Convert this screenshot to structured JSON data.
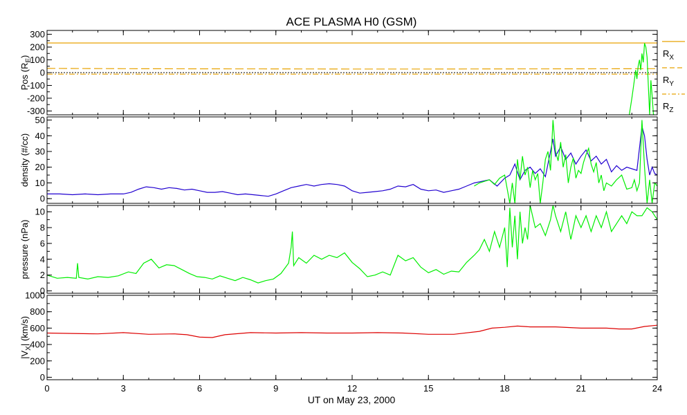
{
  "figure": {
    "title": "ACE PLASMA H0 (GSM)",
    "xlabel": "UT on May 23, 2000",
    "x_ticks": [
      "0",
      "3",
      "6",
      "9",
      "12",
      "15",
      "18",
      "21",
      "24"
    ],
    "xlim": [
      0,
      24
    ]
  },
  "chart_data": [
    {
      "type": "line",
      "ylabel": "Pos (R",
      "ylabel_sub": "E",
      "ylabel_end": ")",
      "ylim": [
        -330,
        330
      ],
      "y_ticks": [
        "300",
        "200",
        "100",
        "0",
        "-100",
        "-200",
        "-300"
      ],
      "y_tick_values": [
        300,
        200,
        100,
        0,
        -100,
        -200,
        -300
      ],
      "legend": [
        {
          "label": "R",
          "sub": "X",
          "style": "solid",
          "color": "#e8a200"
        },
        {
          "label": "R",
          "sub": "Y",
          "style": "dashed",
          "color": "#e8a200"
        },
        {
          "label": "R",
          "sub": "Z",
          "style": "dashdot",
          "color": "#e8a200"
        }
      ],
      "series": [
        {
          "key": "rx",
          "color": "#e8a200",
          "style": "solid",
          "x": [
            0,
            24
          ],
          "values": [
            232,
            232
          ]
        },
        {
          "key": "ry",
          "color": "#e8a200",
          "style": "dashed",
          "x": [
            0,
            3,
            6,
            9,
            12,
            15,
            18,
            21,
            24
          ],
          "values": [
            33,
            31,
            30,
            29,
            28,
            28,
            29,
            30,
            31
          ]
        },
        {
          "key": "rz",
          "color": "#e8a200",
          "style": "dashdot",
          "x": [
            0,
            24
          ],
          "values": [
            -12,
            -12
          ]
        },
        {
          "key": "zero",
          "color": "#000000",
          "style": "dotted",
          "x": [
            0,
            24
          ],
          "values": [
            0,
            0
          ]
        },
        {
          "key": "spike",
          "color": "#00ee00",
          "style": "solid",
          "x": [
            22.9,
            23.0,
            23.1,
            23.15,
            23.2,
            23.25,
            23.3,
            23.35,
            23.4,
            23.45,
            23.5,
            23.55,
            23.6,
            23.65,
            23.7,
            23.75,
            23.8,
            23.85,
            23.9
          ],
          "values": [
            -330,
            -200,
            -60,
            20,
            -50,
            50,
            100,
            20,
            150,
            80,
            230,
            200,
            120,
            -100,
            -330,
            -60,
            -180,
            -330,
            -330
          ]
        }
      ]
    },
    {
      "type": "line",
      "ylabel": "density (#/cc)",
      "ylim": [
        -3,
        52
      ],
      "y_ticks": [
        "50",
        "40",
        "30",
        "20",
        "10",
        "0"
      ],
      "y_tick_values": [
        50,
        40,
        30,
        20,
        10,
        0
      ],
      "series": [
        {
          "key": "density",
          "color": "#2000d0",
          "style": "solid",
          "x": [
            0,
            0.5,
            1,
            1.5,
            2,
            2.5,
            3,
            3.3,
            3.6,
            3.9,
            4.2,
            4.5,
            4.8,
            5.1,
            5.4,
            5.7,
            6,
            6.3,
            6.6,
            6.9,
            7.2,
            7.5,
            7.8,
            8.1,
            8.4,
            8.7,
            9,
            9.3,
            9.6,
            9.9,
            10.2,
            10.5,
            10.8,
            11.1,
            11.4,
            11.7,
            12,
            12.3,
            12.6,
            12.9,
            13.2,
            13.5,
            13.8,
            14.1,
            14.4,
            14.7,
            15,
            15.3,
            15.6,
            15.9,
            16.2,
            16.5,
            16.8,
            17.1,
            17.4,
            17.7,
            18,
            18.2,
            18.4,
            18.6,
            18.8,
            19,
            19.2,
            19.4,
            19.6,
            19.8,
            19.9,
            20,
            20.2,
            20.4,
            20.6,
            20.8,
            21,
            21.2,
            21.4,
            21.6,
            21.8,
            22,
            22.2,
            22.4,
            22.6,
            22.8,
            23,
            23.2,
            23.4,
            23.5,
            23.6,
            23.7,
            23.8,
            23.9,
            24
          ],
          "values": [
            3,
            3,
            2.5,
            3,
            2.5,
            3,
            3,
            4,
            6,
            7.5,
            7,
            6,
            7,
            6.5,
            5.5,
            6,
            5,
            4,
            4,
            4.5,
            3.5,
            2.5,
            3,
            2.5,
            2,
            1.5,
            3,
            5,
            7,
            8,
            9,
            8,
            9,
            9.5,
            9,
            8,
            5,
            3.5,
            4,
            4.5,
            5,
            6,
            8,
            7.5,
            9,
            6,
            5,
            5.5,
            4,
            5,
            6,
            8,
            10,
            11,
            12,
            8,
            13,
            15,
            22,
            12,
            18,
            20,
            16,
            19,
            14,
            30,
            38,
            27,
            33,
            25,
            29,
            22,
            27,
            31,
            24,
            27,
            22,
            25,
            17,
            21,
            18,
            20,
            19,
            18,
            46,
            40,
            25,
            15,
            20,
            16,
            15
          ]
        },
        {
          "key": "density_green",
          "color": "#00ee00",
          "style": "solid",
          "x": [
            16.8,
            17.0,
            17.2,
            17.4,
            17.6,
            17.8,
            18.0,
            18.2,
            18.3,
            18.4,
            18.5,
            18.6,
            18.7,
            18.8,
            18.9,
            19.0,
            19.1,
            19.2,
            19.3,
            19.4,
            19.5,
            19.6,
            19.7,
            19.8,
            19.9,
            20.0,
            20.1,
            20.2,
            20.3,
            20.4,
            20.5,
            20.6,
            20.7,
            20.8,
            20.9,
            21.0,
            21.1,
            21.2,
            21.3,
            21.4,
            21.5,
            21.6,
            21.7,
            21.8,
            21.9,
            22.0,
            22.2,
            22.4,
            22.6,
            22.8,
            23.0,
            23.1,
            23.2,
            23.3,
            23.4,
            23.5,
            23.6,
            23.7,
            23.8,
            23.9,
            24.0
          ],
          "values": [
            8,
            10,
            11,
            12,
            9,
            13,
            15,
            -3,
            10,
            -3,
            25,
            12,
            27,
            15,
            20,
            7,
            18,
            12,
            16,
            -3,
            10,
            25,
            30,
            18,
            50,
            30,
            24,
            36,
            20,
            28,
            10,
            20,
            26,
            13,
            18,
            16,
            23,
            28,
            32,
            22,
            17,
            23,
            10,
            15,
            5,
            10,
            8,
            12,
            15,
            6,
            7,
            12,
            5,
            10,
            50,
            20,
            -3,
            12,
            -3,
            10,
            8
          ]
        }
      ]
    },
    {
      "type": "line",
      "ylabel": "pressure (nPa)",
      "ylim": [
        -0.3,
        10.8
      ],
      "y_ticks": [
        "10",
        "8",
        "6",
        "4",
        "2",
        "0"
      ],
      "y_tick_values": [
        10,
        8,
        6,
        4,
        2,
        0
      ],
      "series": [
        {
          "key": "pressure",
          "color": "#00ee00",
          "style": "solid",
          "x": [
            0,
            0.4,
            0.8,
            1.15,
            1.2,
            1.25,
            1.6,
            2,
            2.4,
            2.8,
            3.2,
            3.5,
            3.8,
            4.1,
            4.4,
            4.7,
            5,
            5.3,
            5.6,
            5.9,
            6.2,
            6.5,
            6.8,
            7.1,
            7.4,
            7.7,
            8,
            8.3,
            8.6,
            8.9,
            9.2,
            9.5,
            9.6,
            9.65,
            9.7,
            9.9,
            10.2,
            10.5,
            10.8,
            11.1,
            11.4,
            11.7,
            12,
            12.3,
            12.6,
            12.9,
            13.2,
            13.5,
            13.8,
            14.1,
            14.4,
            14.7,
            15,
            15.3,
            15.6,
            15.9,
            16.2,
            16.5,
            16.8,
            17.0,
            17.2,
            17.4,
            17.6,
            17.8,
            18.0,
            18.1,
            18.2,
            18.3,
            18.4,
            18.5,
            18.6,
            18.7,
            18.8,
            18.9,
            19.0,
            19.2,
            19.4,
            19.6,
            19.8,
            19.9,
            20.0,
            20.2,
            20.4,
            20.6,
            20.8,
            21.0,
            21.2,
            21.4,
            21.6,
            21.8,
            22.0,
            22.2,
            22.4,
            22.6,
            22.8,
            23.0,
            23.2,
            23.4,
            23.6,
            23.8,
            24.0
          ],
          "values": [
            2,
            1.6,
            1.7,
            1.6,
            3.5,
            1.7,
            1.5,
            1.8,
            1.7,
            1.9,
            2.4,
            2.2,
            3.5,
            4,
            2.9,
            3.3,
            3.2,
            2.7,
            2.2,
            1.8,
            1.7,
            1.5,
            1.9,
            1.6,
            1.3,
            1.7,
            1.4,
            1.0,
            1.3,
            1.5,
            2.2,
            3.5,
            5.5,
            7.5,
            3.2,
            4.2,
            3.5,
            4.5,
            4,
            4.5,
            4.2,
            4.8,
            3.6,
            2.8,
            1.8,
            2,
            2.4,
            2,
            4.5,
            3.8,
            4.2,
            3.0,
            2.3,
            2.7,
            2.1,
            2.5,
            2.4,
            3.6,
            4.5,
            5.2,
            6.5,
            5,
            7.5,
            5.5,
            8,
            3,
            10.5,
            5.5,
            9.5,
            4,
            10,
            6,
            8,
            6.5,
            10.8,
            8,
            8.5,
            7,
            9,
            10.8,
            9.5,
            7.5,
            10,
            6.5,
            9.5,
            8,
            9.5,
            7.5,
            9.5,
            8,
            10,
            7.5,
            8.5,
            9.5,
            8.5,
            10,
            9.5,
            9.5,
            10.5,
            10,
            9
          ]
        }
      ]
    },
    {
      "type": "line",
      "ylabel": "|V",
      "ylabel_sub": "X",
      "ylabel_end": "| (km/s)",
      "ylim": [
        -30,
        1000
      ],
      "y_ticks": [
        "1000",
        "800",
        "600",
        "400",
        "200",
        "0"
      ],
      "y_tick_values": [
        1000,
        800,
        600,
        400,
        200,
        0
      ],
      "series": [
        {
          "key": "vx",
          "color": "#dd0000",
          "style": "solid",
          "x": [
            0,
            1,
            2,
            3,
            4,
            5,
            5.5,
            6,
            6.5,
            7,
            8,
            9,
            10,
            11,
            12,
            13,
            14,
            15,
            16,
            17,
            17.5,
            18,
            18.5,
            19,
            20,
            21,
            22,
            22.5,
            23,
            23.5,
            24
          ],
          "values": [
            540,
            535,
            530,
            545,
            525,
            530,
            520,
            490,
            485,
            520,
            545,
            540,
            545,
            540,
            540,
            545,
            540,
            525,
            525,
            560,
            600,
            610,
            625,
            615,
            615,
            600,
            600,
            590,
            590,
            620,
            635
          ]
        }
      ]
    }
  ]
}
